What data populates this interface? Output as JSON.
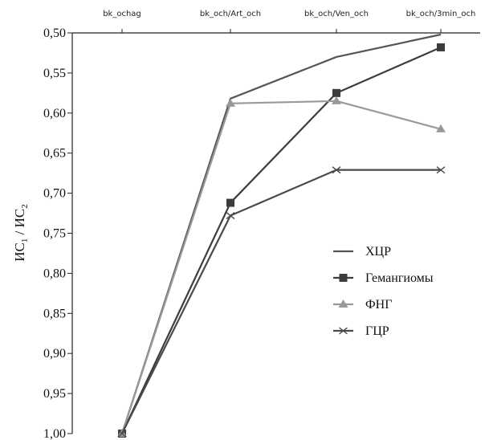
{
  "chart_data": {
    "type": "line",
    "categories": [
      "bk_ochag",
      "bk_och/Art_och",
      "bk_och/Ven_och",
      "bk_och/3min_och"
    ],
    "ylabel": {
      "main1": "ИС",
      "sub1": "1",
      "sep": " / ИС",
      "sub2": "2"
    },
    "ylim": [
      0.5,
      1.0
    ],
    "y_inverted": true,
    "yticks": [
      "0,50",
      "0,55",
      "0,60",
      "0,65",
      "0,70",
      "0,75",
      "0,80",
      "0,85",
      "0,90",
      "0,95",
      "1,00"
    ],
    "grid": false,
    "legend_position": "right",
    "series": [
      {
        "name": "ХЦР",
        "values": [
          1.0,
          0.582,
          0.53,
          0.502
        ],
        "color": "#555555",
        "marker": "none"
      },
      {
        "name": "Гемангиомы",
        "values": [
          1.0,
          0.712,
          0.575,
          0.518
        ],
        "color": "#3c3c3c",
        "marker": "square"
      },
      {
        "name": "ФНГ",
        "values": [
          1.0,
          0.588,
          0.585,
          0.62
        ],
        "color": "#999999",
        "marker": "triangle"
      },
      {
        "name": "ГЦР",
        "values": [
          1.0,
          0.728,
          0.671,
          0.671
        ],
        "color": "#4a4a4a",
        "marker": "x"
      }
    ]
  }
}
